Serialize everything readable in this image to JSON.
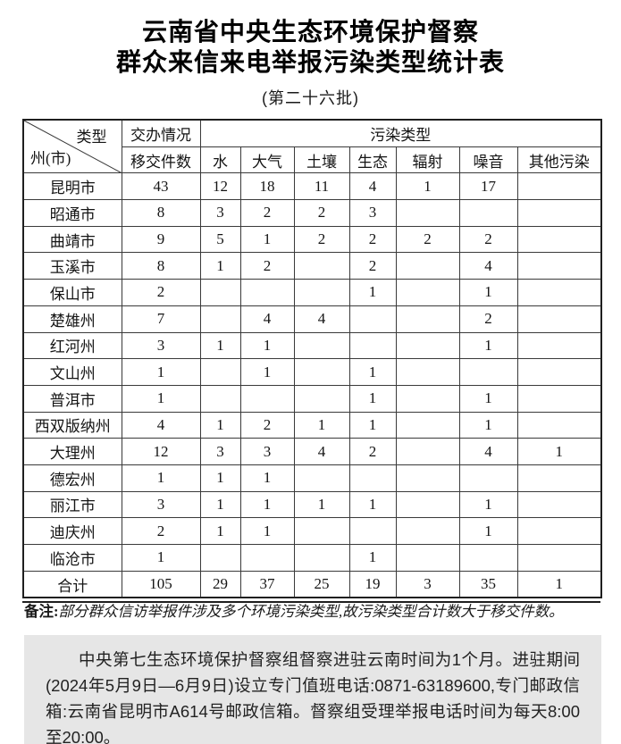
{
  "title": {
    "line1": "云南省中央生态环境保护督察",
    "line2": "群众来信来电举报污染类型统计表",
    "batch": "(第二十六批)"
  },
  "table": {
    "corner": {
      "top_right": "类型",
      "bottom_left": "州(市)"
    },
    "handling_header": "交办情况",
    "transferred_header": "移交件数",
    "pollution_header": "污染类型",
    "pollution_types": [
      "水",
      "大气",
      "土壤",
      "生态",
      "辐射",
      "噪音",
      "其他污染"
    ],
    "rows": [
      {
        "region": "昆明市",
        "transferred": "43",
        "values": [
          "12",
          "18",
          "11",
          "4",
          "1",
          "17",
          ""
        ]
      },
      {
        "region": "昭通市",
        "transferred": "8",
        "values": [
          "3",
          "2",
          "2",
          "3",
          "",
          "",
          ""
        ]
      },
      {
        "region": "曲靖市",
        "transferred": "9",
        "values": [
          "5",
          "1",
          "2",
          "2",
          "2",
          "2",
          ""
        ]
      },
      {
        "region": "玉溪市",
        "transferred": "8",
        "values": [
          "1",
          "2",
          "",
          "2",
          "",
          "4",
          ""
        ]
      },
      {
        "region": "保山市",
        "transferred": "2",
        "values": [
          "",
          "",
          "",
          "1",
          "",
          "1",
          ""
        ]
      },
      {
        "region": "楚雄州",
        "transferred": "7",
        "values": [
          "",
          "4",
          "4",
          "",
          "",
          "2",
          ""
        ]
      },
      {
        "region": "红河州",
        "transferred": "3",
        "values": [
          "1",
          "1",
          "",
          "",
          "",
          "1",
          ""
        ]
      },
      {
        "region": "文山州",
        "transferred": "1",
        "values": [
          "",
          "1",
          "",
          "1",
          "",
          "",
          ""
        ]
      },
      {
        "region": "普洱市",
        "transferred": "1",
        "values": [
          "",
          "",
          "",
          "1",
          "",
          "1",
          ""
        ]
      },
      {
        "region": "西双版纳州",
        "transferred": "4",
        "values": [
          "1",
          "2",
          "1",
          "1",
          "",
          "1",
          ""
        ]
      },
      {
        "region": "大理州",
        "transferred": "12",
        "values": [
          "3",
          "3",
          "4",
          "2",
          "",
          "4",
          "1"
        ]
      },
      {
        "region": "德宏州",
        "transferred": "1",
        "values": [
          "1",
          "1",
          "",
          "",
          "",
          "",
          ""
        ]
      },
      {
        "region": "丽江市",
        "transferred": "3",
        "values": [
          "1",
          "1",
          "1",
          "1",
          "",
          "1",
          ""
        ]
      },
      {
        "region": "迪庆州",
        "transferred": "2",
        "values": [
          "1",
          "1",
          "",
          "",
          "",
          "1",
          ""
        ]
      },
      {
        "region": "临沧市",
        "transferred": "1",
        "values": [
          "",
          "",
          "",
          "1",
          "",
          "",
          ""
        ]
      }
    ],
    "total_row": {
      "region": "合计",
      "transferred": "105",
      "values": [
        "29",
        "37",
        "25",
        "19",
        "3",
        "35",
        "1"
      ]
    }
  },
  "note": {
    "label": "备注:",
    "text": "部分群众信访举报件涉及多个环境污染类型,故污染类型合计数大于移交件数。"
  },
  "notice": {
    "text": "中央第七生态环境保护督察组督察进驻云南时间为1个月。进驻期间(2024年5月9日—6月9日)设立专门值班电话:0871-63189600,专门邮政信箱:云南省昆明市A614号邮政信箱。督察组受理举报电话时间为每天8:00至20:00。"
  }
}
